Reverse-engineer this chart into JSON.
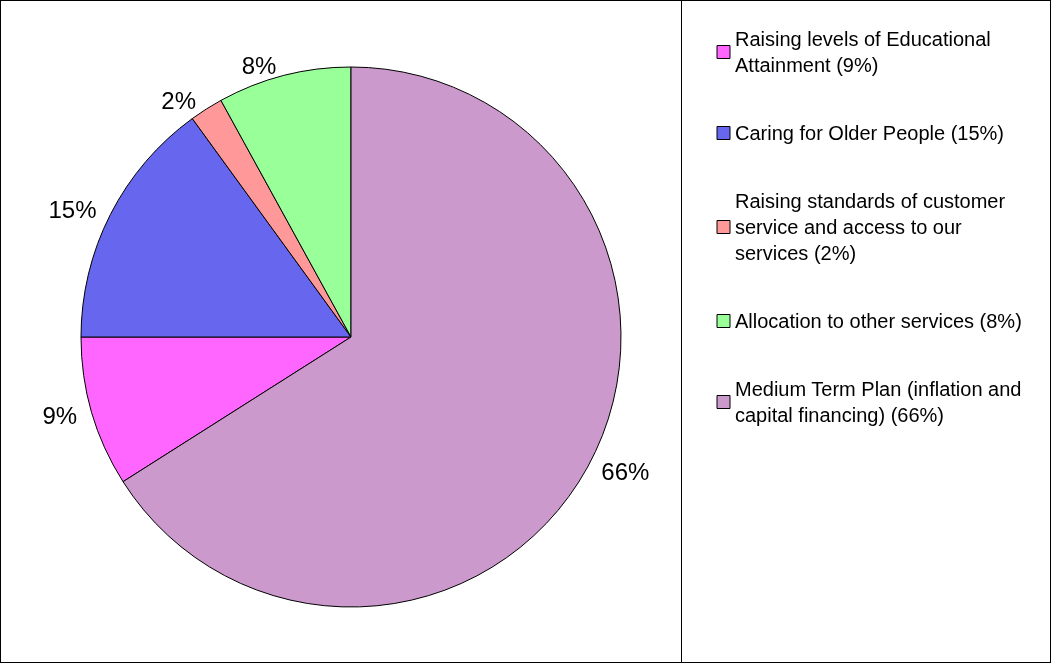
{
  "chart_data": {
    "type": "pie",
    "categories": [
      "Raising levels of Educational Attainment (9%)",
      "Caring for Older People (15%)",
      "Raising standards of customer service and access to our services (2%)",
      "Allocation to other services (8%)",
      "Medium Term Plan (inflation and capital financing) (66%)"
    ],
    "values": [
      9,
      15,
      2,
      8,
      66
    ],
    "colors": [
      "#ff66ff",
      "#6666ee",
      "#ff9999",
      "#99ff99",
      "#cc99cc"
    ],
    "value_labels": [
      "9%",
      "15%",
      "2%",
      "8%",
      "66%"
    ],
    "legend": "right"
  }
}
